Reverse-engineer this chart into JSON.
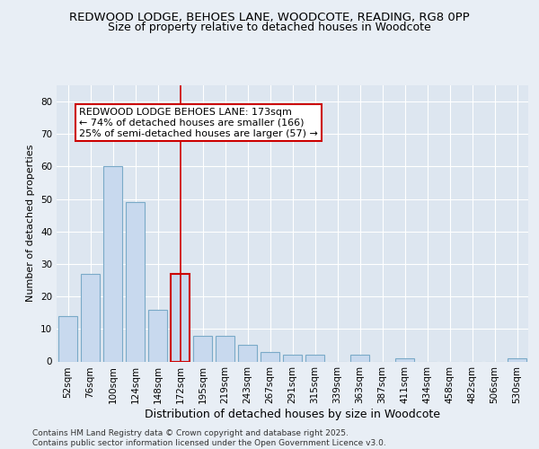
{
  "title1": "REDWOOD LODGE, BEHOES LANE, WOODCOTE, READING, RG8 0PP",
  "title2": "Size of property relative to detached houses in Woodcote",
  "xlabel": "Distribution of detached houses by size in Woodcote",
  "ylabel": "Number of detached properties",
  "categories": [
    "52sqm",
    "76sqm",
    "100sqm",
    "124sqm",
    "148sqm",
    "172sqm",
    "195sqm",
    "219sqm",
    "243sqm",
    "267sqm",
    "291sqm",
    "315sqm",
    "339sqm",
    "363sqm",
    "387sqm",
    "411sqm",
    "434sqm",
    "458sqm",
    "482sqm",
    "506sqm",
    "530sqm"
  ],
  "values": [
    14,
    27,
    60,
    49,
    16,
    27,
    8,
    8,
    5,
    3,
    2,
    2,
    0,
    2,
    0,
    1,
    0,
    0,
    0,
    0,
    1
  ],
  "bar_color": "#c8d9ee",
  "bar_edge_color": "#7aaac8",
  "highlight_bar_index": 5,
  "highlight_bar_edge_color": "#cc0000",
  "vline_color": "#cc0000",
  "annotation_text": "REDWOOD LODGE BEHOES LANE: 173sqm\n← 74% of detached houses are smaller (166)\n25% of semi-detached houses are larger (57) →",
  "annotation_box_color": "#ffffff",
  "annotation_box_edge_color": "#cc0000",
  "ylim": [
    0,
    85
  ],
  "yticks": [
    0,
    10,
    20,
    30,
    40,
    50,
    60,
    70,
    80
  ],
  "background_color": "#e8eef5",
  "plot_background_color": "#dde6f0",
  "grid_color": "#ffffff",
  "footer_text": "Contains HM Land Registry data © Crown copyright and database right 2025.\nContains public sector information licensed under the Open Government Licence v3.0.",
  "title1_fontsize": 9.5,
  "title2_fontsize": 9,
  "xlabel_fontsize": 9,
  "ylabel_fontsize": 8,
  "tick_fontsize": 7.5,
  "annotation_fontsize": 8,
  "footer_fontsize": 6.5
}
